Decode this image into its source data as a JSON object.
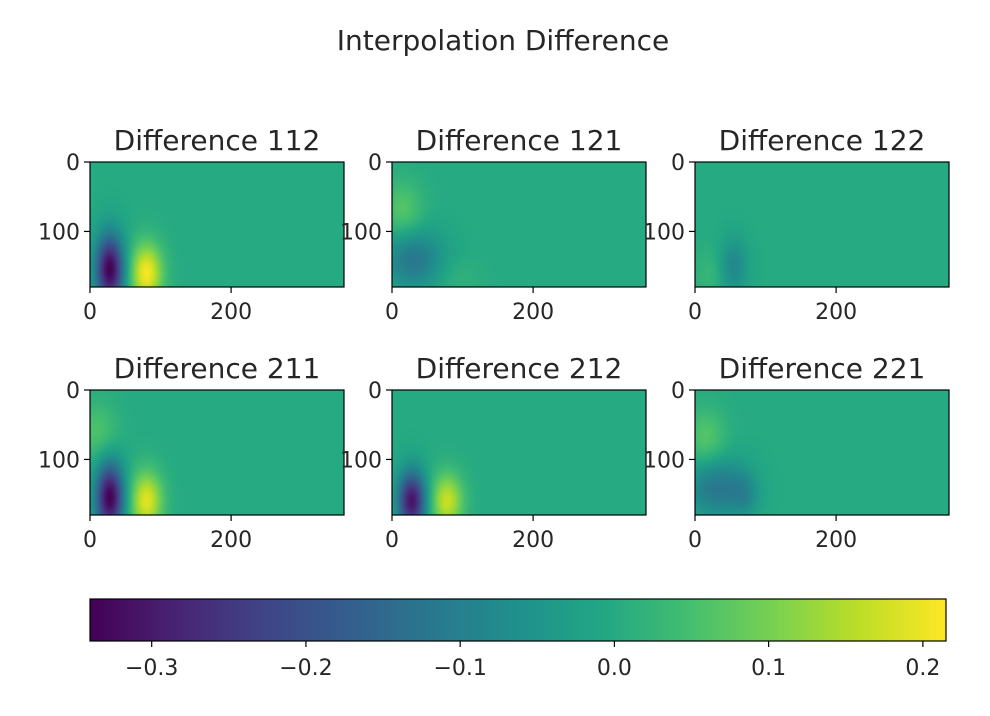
{
  "figure": {
    "suptitle": "Interpolation Difference"
  },
  "chart_data": [
    {
      "type": "heatmap",
      "title": "Difference 112",
      "x_ticks": [
        0,
        200
      ],
      "y_ticks": [
        0,
        100
      ],
      "xlim": [
        0,
        360
      ],
      "ylim": [
        180,
        0
      ],
      "blobs": [
        {
          "x": 28,
          "y": 155,
          "sx": 14,
          "sy": 35,
          "amp": -0.34
        },
        {
          "x": 80,
          "y": 160,
          "sx": 16,
          "sy": 30,
          "amp": 0.21
        }
      ]
    },
    {
      "type": "heatmap",
      "title": "Difference 121",
      "x_ticks": [
        0,
        200
      ],
      "y_ticks": [
        0,
        100
      ],
      "xlim": [
        0,
        360
      ],
      "ylim": [
        180,
        0
      ],
      "blobs": [
        {
          "x": 15,
          "y": 70,
          "sx": 20,
          "sy": 30,
          "amp": 0.07
        },
        {
          "x": 30,
          "y": 140,
          "sx": 30,
          "sy": 30,
          "amp": -0.12
        },
        {
          "x": 90,
          "y": 165,
          "sx": 25,
          "sy": 20,
          "amp": 0.02
        }
      ]
    },
    {
      "type": "heatmap",
      "title": "Difference 122",
      "x_ticks": [
        0,
        200
      ],
      "y_ticks": [
        0,
        100
      ],
      "xlim": [
        0,
        360
      ],
      "ylim": [
        180,
        0
      ],
      "blobs": [
        {
          "x": 55,
          "y": 150,
          "sx": 14,
          "sy": 28,
          "amp": -0.08
        },
        {
          "x": 20,
          "y": 160,
          "sx": 14,
          "sy": 24,
          "amp": 0.03
        }
      ]
    },
    {
      "type": "heatmap",
      "title": "Difference 211",
      "x_ticks": [
        0,
        200
      ],
      "y_ticks": [
        0,
        100
      ],
      "xlim": [
        0,
        360
      ],
      "ylim": [
        180,
        0
      ],
      "blobs": [
        {
          "x": 10,
          "y": 60,
          "sx": 20,
          "sy": 30,
          "amp": 0.06
        },
        {
          "x": 28,
          "y": 155,
          "sx": 14,
          "sy": 35,
          "amp": -0.34
        },
        {
          "x": 80,
          "y": 160,
          "sx": 16,
          "sy": 30,
          "amp": 0.19
        }
      ]
    },
    {
      "type": "heatmap",
      "title": "Difference 212",
      "x_ticks": [
        0,
        200
      ],
      "y_ticks": [
        0,
        100
      ],
      "xlim": [
        0,
        360
      ],
      "ylim": [
        180,
        0
      ],
      "blobs": [
        {
          "x": 28,
          "y": 160,
          "sx": 14,
          "sy": 30,
          "amp": -0.31
        },
        {
          "x": 78,
          "y": 160,
          "sx": 16,
          "sy": 28,
          "amp": 0.17
        }
      ]
    },
    {
      "type": "heatmap",
      "title": "Difference 221",
      "x_ticks": [
        0,
        200
      ],
      "y_ticks": [
        0,
        100
      ],
      "xlim": [
        0,
        360
      ],
      "ylim": [
        180,
        0
      ],
      "blobs": [
        {
          "x": 15,
          "y": 70,
          "sx": 20,
          "sy": 30,
          "amp": 0.07
        },
        {
          "x": 30,
          "y": 140,
          "sx": 30,
          "sy": 30,
          "amp": -0.12
        },
        {
          "x": 70,
          "y": 150,
          "sx": 14,
          "sy": 22,
          "amp": -0.06
        }
      ]
    }
  ],
  "colorbar": {
    "colormap": "viridis",
    "vmin": -0.34,
    "vmax": 0.215,
    "ticks": [
      -0.3,
      -0.2,
      -0.1,
      0.0,
      0.1,
      0.2
    ],
    "tick_labels": [
      "−0.3",
      "−0.2",
      "−0.1",
      "0.0",
      "0.1",
      "0.2"
    ],
    "orientation": "horizontal"
  }
}
